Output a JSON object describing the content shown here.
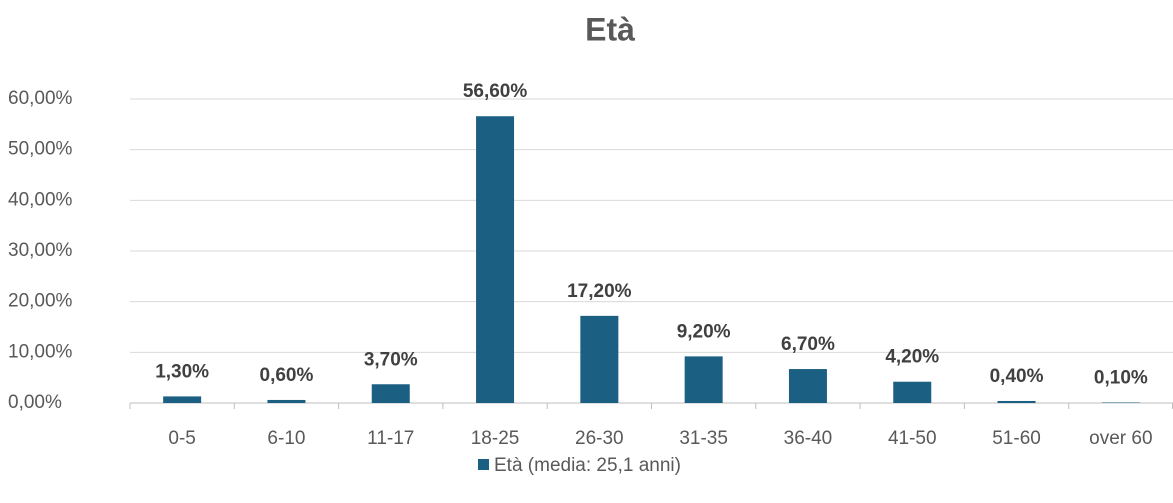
{
  "chart_data": {
    "type": "bar",
    "title": "Età",
    "categories": [
      "0-5",
      "6-10",
      "11-17",
      "18-25",
      "26-30",
      "31-35",
      "36-40",
      "41-50",
      "51-60",
      "over 60"
    ],
    "series": [
      {
        "name": "Età (media: 25,1 anni)",
        "color": "#1b5f83",
        "values": [
          1.3,
          0.6,
          3.7,
          56.6,
          17.2,
          9.2,
          6.7,
          4.2,
          0.4,
          0.1
        ],
        "value_labels": [
          "1,30%",
          "0,60%",
          "3,70%",
          "56,60%",
          "17,20%",
          "9,20%",
          "6,70%",
          "4,20%",
          "0,40%",
          "0,10%"
        ]
      }
    ],
    "ylim": [
      0,
      60
    ],
    "yticks": [
      {
        "value": 0,
        "label": "0,00%"
      },
      {
        "value": 10,
        "label": "10,00%"
      },
      {
        "value": 20,
        "label": "20,00%"
      },
      {
        "value": 30,
        "label": "30,00%"
      },
      {
        "value": 40,
        "label": "40,00%"
      },
      {
        "value": 50,
        "label": "50,00%"
      },
      {
        "value": 60,
        "label": "60,00%"
      }
    ],
    "grid": true,
    "legend": "bottom"
  }
}
